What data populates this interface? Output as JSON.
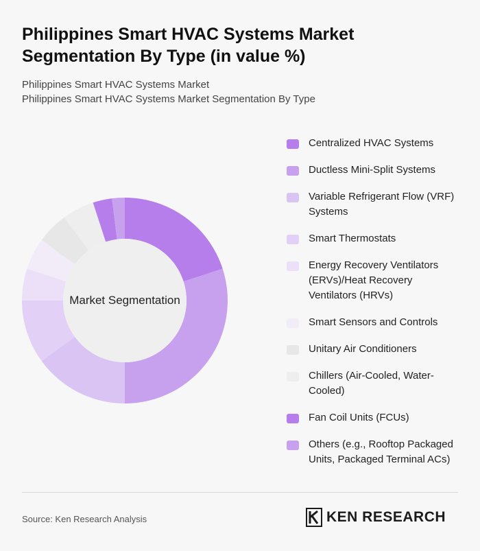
{
  "header": {
    "title_line1": "Philippines Smart HVAC Systems Market",
    "title_line2": "Segmentation By Type (in value %)",
    "subtitle_line1": "Philippines Smart HVAC Systems Market",
    "subtitle_line2": "Philippines Smart HVAC Systems Market Segmentation By Type"
  },
  "chart_data": {
    "type": "pie",
    "variant": "donut",
    "center_label": "Market Segmentation",
    "categories": [
      "Centralized HVAC Systems",
      "Ductless Mini-Split Systems",
      "Variable Refrigerant Flow (VRF) Systems",
      "Smart Thermostats",
      "Energy Recovery Ventilators (ERVs)/Heat Recovery Ventilators (HRVs)",
      "Smart Sensors and Controls",
      "Unitary Air Conditioners",
      "Chillers (Air-Cooled, Water-Cooled)",
      "Fan Coil Units (FCUs)",
      "Others (e.g., Rooftop Packaged Units, Packaged Terminal ACs)"
    ],
    "values": [
      20,
      30,
      15,
      10,
      5,
      5,
      5,
      5,
      3,
      2
    ],
    "colors": [
      "#b67eea",
      "#c7a0ee",
      "#dac4f4",
      "#e2d0f6",
      "#ebe0f8",
      "#f1ecf8",
      "#e7e7e7",
      "#eeeeee",
      "#b67eea",
      "#c7a0ee"
    ],
    "legend_position": "right"
  },
  "legend": {
    "items": [
      {
        "lines": [
          "Centralized HVAC Systems"
        ]
      },
      {
        "lines": [
          "Ductless Mini-Split Systems"
        ]
      },
      {
        "lines": [
          "Variable Refrigerant Flow (VRF)",
          "Systems"
        ]
      },
      {
        "lines": [
          "Smart Thermostats"
        ]
      },
      {
        "lines": [
          "Energy Recovery Ventilators",
          "(ERVs)/Heat Recovery",
          "Ventilators (HRVs)"
        ]
      },
      {
        "lines": [
          "Smart Sensors and Controls"
        ]
      },
      {
        "lines": [
          "Unitary Air Conditioners"
        ]
      },
      {
        "lines": [
          "Chillers (Air-Cooled, Water-",
          "Cooled)"
        ]
      },
      {
        "lines": [
          "Fan Coil Units (FCUs)"
        ]
      },
      {
        "lines": [
          "Others (e.g., Rooftop Packaged",
          "Units, Packaged Terminal ACs)"
        ]
      }
    ]
  },
  "footer": {
    "source": "Source: Ken Research Analysis",
    "brand": "KEN RESEARCH"
  }
}
